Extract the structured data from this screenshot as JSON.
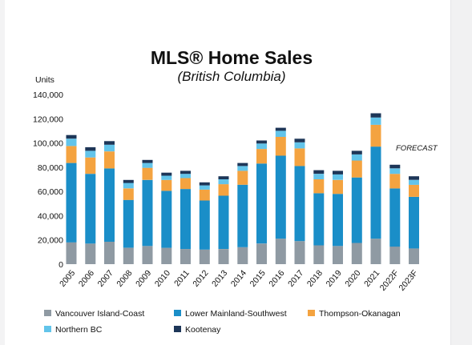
{
  "chart_data": {
    "type": "bar",
    "stacked": true,
    "title": "MLS® Home Sales",
    "subtitle": "(British Columbia)",
    "ylabel": "Units",
    "ylim": [
      0,
      140000
    ],
    "yticks": [
      "0",
      "20,000",
      "40,000",
      "60,000",
      "80,000",
      "100,000",
      "120,000",
      "140,000"
    ],
    "categories": [
      "2005",
      "2006",
      "2007",
      "2008",
      "2009",
      "2010",
      "2011",
      "2012",
      "2013",
      "2014",
      "2015",
      "2016",
      "2017",
      "2018",
      "2019",
      "2020",
      "2021",
      "2022F",
      "2023F"
    ],
    "annotation": "FORECAST",
    "legend_position": "bottom",
    "series": [
      {
        "name": "Vancouver Island-Coast",
        "color": "#8f9aa3",
        "values": [
          18000,
          17000,
          18500,
          13500,
          15000,
          13500,
          12500,
          12000,
          12500,
          14000,
          17000,
          21000,
          19000,
          15500,
          15000,
          17500,
          21000,
          14500,
          13000
        ]
      },
      {
        "name": "Lower Mainland-Southwest",
        "color": "#1a8ec8",
        "values": [
          65500,
          57500,
          60500,
          39500,
          54500,
          47000,
          49500,
          40500,
          44000,
          51500,
          66000,
          68500,
          62000,
          43000,
          43000,
          54000,
          76000,
          48000,
          42500
        ]
      },
      {
        "name": "Thompson-Okanagan",
        "color": "#f4a340",
        "values": [
          14000,
          13500,
          14000,
          9500,
          10000,
          9000,
          9000,
          9000,
          9500,
          11500,
          12000,
          15500,
          14500,
          11500,
          11500,
          14000,
          18000,
          12000,
          10000
        ]
      },
      {
        "name": "Northern BC",
        "color": "#62c4ea",
        "values": [
          6000,
          5500,
          5500,
          4500,
          4000,
          3500,
          3500,
          3500,
          4000,
          4000,
          4500,
          5000,
          5000,
          4500,
          4500,
          5000,
          6000,
          4500,
          4000
        ]
      },
      {
        "name": "Kootenay",
        "color": "#1d3658",
        "values": [
          3000,
          3000,
          3000,
          2500,
          2500,
          2500,
          2500,
          2500,
          2500,
          2500,
          2500,
          2500,
          3000,
          3000,
          3000,
          3000,
          3500,
          3000,
          3000
        ]
      }
    ]
  }
}
